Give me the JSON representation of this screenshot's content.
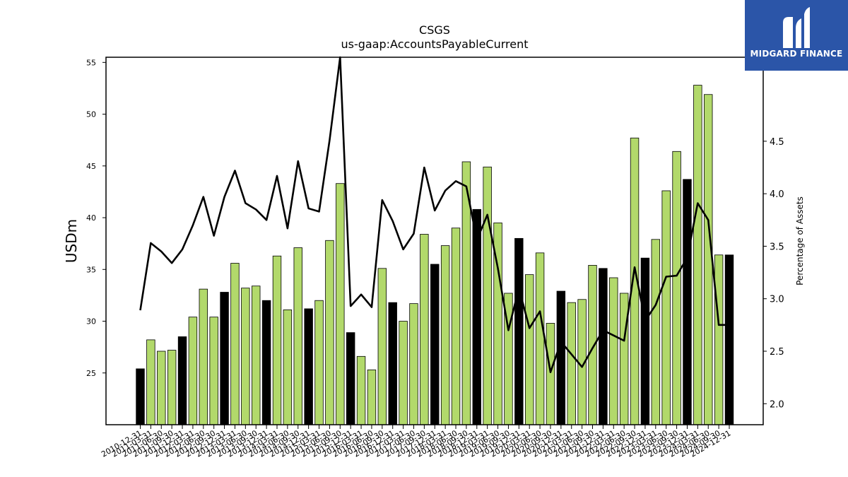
{
  "brand": {
    "name": "MIDGARD FINANCE",
    "logo_icon": "midgard-m-logo-icon",
    "background_color": "#2b55a8"
  },
  "chart_data": {
    "type": "bar",
    "title": "CSGS",
    "subtitle": "us-gaap:AccountsPayableCurrent",
    "ylabel": "USDm",
    "y2label": "Percentage of Assets",
    "ylim": [
      20,
      55.5
    ],
    "y2lim": [
      1.8,
      5.3
    ],
    "yticks": [
      25,
      30,
      35,
      40,
      45,
      50,
      55
    ],
    "y2ticks": [
      2.0,
      2.5,
      3.0,
      3.5,
      4.0,
      4.5
    ],
    "grid": false,
    "colors": {
      "annual_bar": "#000000",
      "quarter_bar": "#b2d96b",
      "line": "#000000"
    },
    "categories": [
      "2010-12-31",
      "2011-03-31",
      "2011-06-30",
      "2011-09-30",
      "2011-12-31",
      "2012-03-31",
      "2012-06-30",
      "2012-09-30",
      "2012-12-31",
      "2013-03-31",
      "2013-06-30",
      "2013-09-30",
      "2013-12-31",
      "2014-03-31",
      "2014-06-30",
      "2014-09-30",
      "2014-12-31",
      "2015-03-31",
      "2015-06-30",
      "2015-09-30",
      "2015-12-31",
      "2016-03-31",
      "2016-06-30",
      "2016-09-30",
      "2016-12-31",
      "2017-03-31",
      "2017-06-30",
      "2017-09-30",
      "2017-12-31",
      "2018-03-31",
      "2018-06-30",
      "2018-09-30",
      "2018-12-31",
      "2019-03-31",
      "2019-06-30",
      "2019-09-30",
      "2019-12-31",
      "2020-03-31",
      "2020-06-30",
      "2020-09-30",
      "2020-12-31",
      "2021-03-31",
      "2021-06-30",
      "2021-09-30",
      "2021-12-31",
      "2022-03-31",
      "2022-06-30",
      "2022-09-30",
      "2022-12-31",
      "2023-03-31",
      "2023-06-30",
      "2023-09-30",
      "2023-12-31",
      "2024-03-31",
      "2024-06-30",
      "2024-09-30",
      "2024-12-31"
    ],
    "series": [
      {
        "kind": "bar",
        "values": [
          25.4,
          28.2,
          27.1,
          27.2,
          28.5,
          30.4,
          33.1,
          30.4,
          32.8,
          35.6,
          33.2,
          33.4,
          32.0,
          36.3,
          31.1,
          37.1,
          31.2,
          32.0,
          37.8,
          43.3,
          28.9,
          26.6,
          25.3,
          35.1,
          31.8,
          30.0,
          31.7,
          38.4,
          35.5,
          37.3,
          39.0,
          45.4,
          40.8,
          44.9,
          39.5,
          32.7,
          38.0,
          34.5,
          36.6,
          29.8,
          32.9,
          31.8,
          32.1,
          35.4,
          35.1,
          34.2,
          32.7,
          47.7,
          36.1,
          37.9,
          42.6,
          46.4,
          43.7,
          52.8,
          51.9,
          36.4,
          36.4
        ]
      },
      {
        "kind": "line",
        "axis": "right",
        "values": [
          2.89,
          3.53,
          3.45,
          3.34,
          3.47,
          3.7,
          3.97,
          3.6,
          3.97,
          4.22,
          3.91,
          3.85,
          3.75,
          4.17,
          3.67,
          4.31,
          3.86,
          3.83,
          4.51,
          5.3,
          2.93,
          3.04,
          2.92,
          3.94,
          3.74,
          3.47,
          3.62,
          4.25,
          3.84,
          4.03,
          4.12,
          4.07,
          3.56,
          3.8,
          3.29,
          2.7,
          3.1,
          2.72,
          2.88,
          2.3,
          2.59,
          2.47,
          2.35,
          2.53,
          2.7,
          2.65,
          2.6,
          3.3,
          2.79,
          2.94,
          3.21,
          3.22,
          3.39,
          3.91,
          3.75,
          2.75,
          2.75
        ]
      }
    ]
  }
}
